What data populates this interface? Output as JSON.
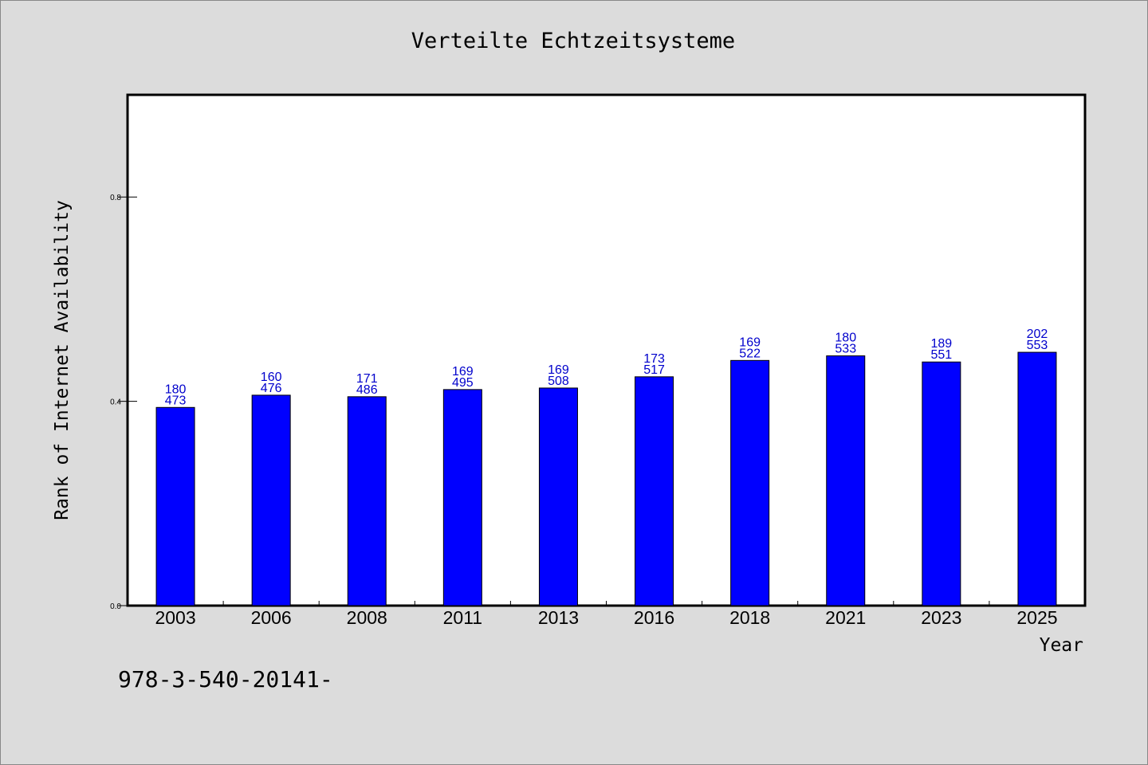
{
  "chart_data": {
    "type": "bar",
    "title": "Verteilte Echtzeitsysteme",
    "xlabel": "Year",
    "ylabel": "Rank of Internet Availability",
    "ylim": [
      0,
      1.0
    ],
    "yticks": [
      "0.0",
      "0.4",
      "0.8"
    ],
    "ytick_values": [
      0.0,
      0.4,
      0.8
    ],
    "grid": false,
    "bar_color": "#0000ff",
    "label_color": "#0000cc",
    "categories": [
      "2003",
      "2006",
      "2008",
      "2011",
      "2013",
      "2016",
      "2018",
      "2021",
      "2023",
      "2025"
    ],
    "values": [
      0.388,
      0.412,
      0.409,
      0.423,
      0.426,
      0.448,
      0.48,
      0.489,
      0.477,
      0.496
    ],
    "labels_top": [
      "180",
      "160",
      "171",
      "169",
      "169",
      "173",
      "169",
      "180",
      "189",
      "202"
    ],
    "labels_bottom": [
      "473",
      "476",
      "486",
      "495",
      "508",
      "517",
      "522",
      "533",
      "551",
      "553"
    ]
  },
  "footnote": "978-3-540-20141-"
}
